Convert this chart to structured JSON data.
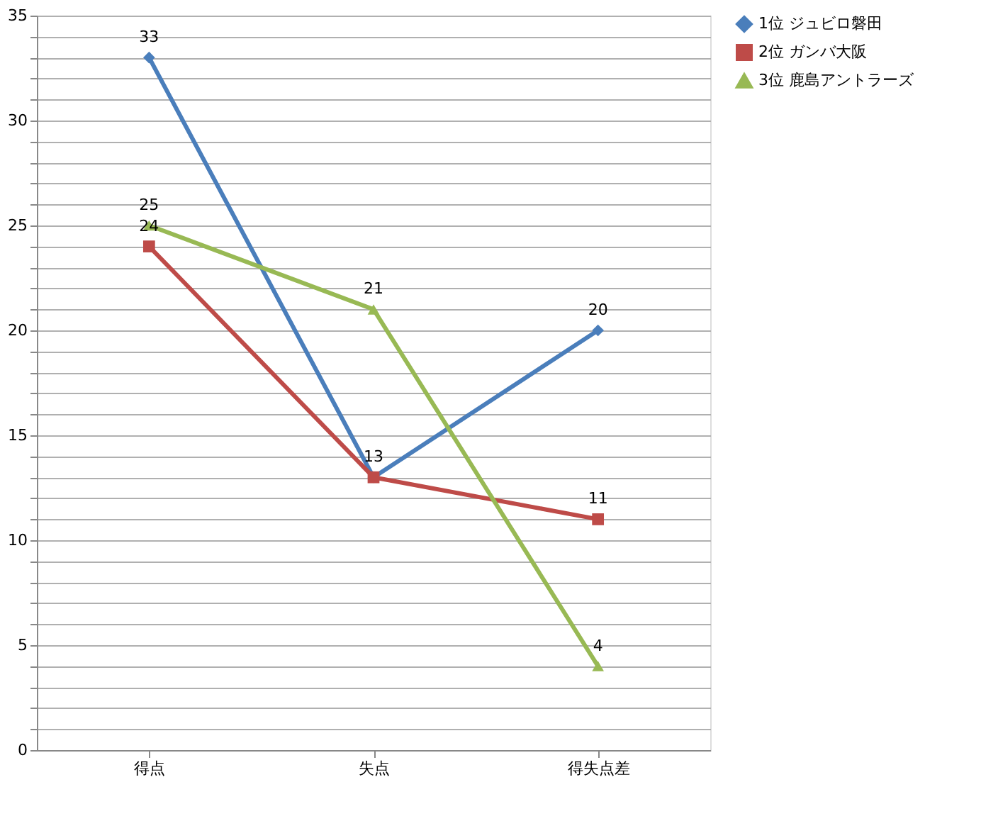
{
  "chart_data": {
    "type": "line",
    "categories": [
      "得点",
      "失点",
      "得失点差"
    ],
    "series": [
      {
        "name": "1位  ジュビロ磐田",
        "color": "#4a7ebb",
        "marker": "diamond",
        "values": [
          33,
          13,
          20
        ],
        "value_labels": [
          "33",
          "13",
          "20"
        ]
      },
      {
        "name": "2位  ガンバ大阪",
        "color": "#be4b48",
        "marker": "square",
        "values": [
          24,
          13,
          11
        ],
        "value_labels": [
          "24",
          null,
          "11"
        ]
      },
      {
        "name": "3位  鹿島アントラーズ",
        "color": "#98b954",
        "marker": "triangle",
        "values": [
          25,
          21,
          4
        ],
        "value_labels": [
          "25",
          "21",
          "4"
        ]
      }
    ],
    "ylim": [
      0,
      35
    ],
    "yticks": [
      0,
      {
        "value": 1,
        "label": null
      },
      {
        "value": 2,
        "label": null
      },
      {
        "value": 3,
        "label": null
      },
      {
        "value": 4,
        "label": null
      },
      5,
      {
        "value": 6,
        "label": null
      },
      {
        "value": 7,
        "label": null
      },
      {
        "value": 8,
        "label": null
      },
      {
        "value": 9,
        "label": null
      },
      10,
      {
        "value": 11,
        "label": null
      },
      {
        "value": 12,
        "label": null
      },
      {
        "value": 13,
        "label": null
      },
      {
        "value": 14,
        "label": null
      },
      15,
      {
        "value": 16,
        "label": null
      },
      {
        "value": 17,
        "label": null
      },
      {
        "value": 18,
        "label": null
      },
      {
        "value": 19,
        "label": null
      },
      20,
      {
        "value": 21,
        "label": null
      },
      {
        "value": 22,
        "label": null
      },
      {
        "value": 23,
        "label": null
      },
      {
        "value": 24,
        "label": null
      },
      25,
      {
        "value": 26,
        "label": null
      },
      {
        "value": 27,
        "label": null
      },
      {
        "value": 28,
        "label": null
      },
      {
        "value": 29,
        "label": null
      },
      30,
      {
        "value": 31,
        "label": null
      },
      {
        "value": 32,
        "label": null
      },
      {
        "value": 33,
        "label": null
      },
      {
        "value": 34,
        "label": null
      },
      35
    ],
    "grid": "y",
    "legend": "right",
    "line_style": "solid"
  }
}
